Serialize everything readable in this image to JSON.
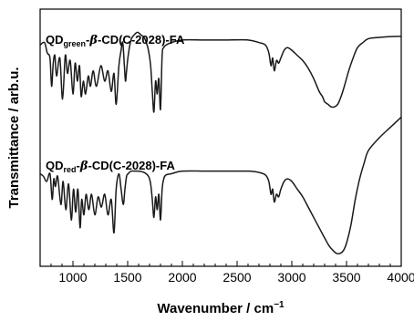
{
  "chart_data": {
    "type": "line",
    "title": "",
    "xlabel": "Wavenumber / cm",
    "xlabel_sup": "−1",
    "ylabel": "Transmittance / arb.u.",
    "xlim": [
      700,
      4000
    ],
    "ylim": [
      0,
      1
    ],
    "x_ticks": [
      1000,
      1500,
      2000,
      2500,
      3000,
      3500,
      4000
    ],
    "x_tick_labels": [
      "1000",
      "1500",
      "2000",
      "2500",
      "3000",
      "3500",
      "4000"
    ],
    "x_minor_ticks": [
      800,
      900,
      1100,
      1200,
      1300,
      1400,
      1600,
      1700,
      1800,
      1900,
      2100,
      2200,
      2300,
      2400,
      2600,
      2700,
      2800,
      2900,
      3100,
      3200,
      3300,
      3400,
      3600,
      3700,
      3800,
      3900
    ],
    "y_ticks_shown": false,
    "grid": false,
    "legend": "none",
    "series": [
      {
        "name": "QDgreen-β-CD(C-2028)-FA",
        "label_parts": [
          {
            "text": "QD",
            "style": "normal"
          },
          {
            "text": "green",
            "style": "sub"
          },
          {
            "text": "-",
            "style": "normal"
          },
          {
            "text": "β",
            "style": "greek"
          },
          {
            "text": "-CD(C-2028)-FA",
            "style": "normal"
          }
        ],
        "color": "#1a1a1a",
        "x": [
          700,
          740,
          765,
          790,
          805,
          820,
          835,
          850,
          880,
          905,
          930,
          950,
          975,
          1000,
          1020,
          1040,
          1060,
          1075,
          1095,
          1115,
          1140,
          1160,
          1185,
          1215,
          1255,
          1290,
          1320,
          1350,
          1375,
          1395,
          1420,
          1440,
          1455,
          1470,
          1480,
          1490,
          1505,
          1530,
          1560,
          1590,
          1620,
          1650,
          1670,
          1690,
          1710,
          1725,
          1740,
          1755,
          1770,
          1785,
          1800,
          1815,
          1830,
          1850,
          1900,
          2000,
          2200,
          2400,
          2600,
          2700,
          2760,
          2790,
          2810,
          2825,
          2840,
          2860,
          2880,
          2900,
          2930,
          2960,
          3000,
          3050,
          3100,
          3150,
          3200,
          3250,
          3280,
          3300,
          3330,
          3360,
          3390,
          3420,
          3450,
          3480,
          3520,
          3560,
          3600,
          3650,
          3700,
          3800,
          3900,
          4000
        ],
        "y": [
          0.86,
          0.87,
          0.83,
          0.81,
          0.7,
          0.79,
          0.82,
          0.74,
          0.81,
          0.65,
          0.82,
          0.75,
          0.8,
          0.67,
          0.79,
          0.72,
          0.78,
          0.66,
          0.72,
          0.67,
          0.74,
          0.7,
          0.76,
          0.7,
          0.78,
          0.72,
          0.76,
          0.68,
          0.75,
          0.63,
          0.78,
          0.84,
          0.87,
          0.78,
          0.72,
          0.76,
          0.82,
          0.88,
          0.9,
          0.91,
          0.9,
          0.89,
          0.87,
          0.84,
          0.78,
          0.68,
          0.6,
          0.72,
          0.67,
          0.73,
          0.61,
          0.82,
          0.85,
          0.86,
          0.87,
          0.88,
          0.88,
          0.88,
          0.88,
          0.87,
          0.86,
          0.83,
          0.78,
          0.81,
          0.76,
          0.8,
          0.79,
          0.81,
          0.84,
          0.85,
          0.84,
          0.82,
          0.8,
          0.77,
          0.73,
          0.68,
          0.66,
          0.64,
          0.63,
          0.62,
          0.62,
          0.63,
          0.66,
          0.7,
          0.76,
          0.81,
          0.85,
          0.87,
          0.885,
          0.89,
          0.893,
          0.894
        ]
      },
      {
        "name": "QDred-β-CD(C-2028)-FA",
        "label_parts": [
          {
            "text": "QD",
            "style": "normal"
          },
          {
            "text": "red",
            "style": "sub"
          },
          {
            "text": "-",
            "style": "normal"
          },
          {
            "text": "β",
            "style": "greek"
          },
          {
            "text": "-CD(C-2028)-FA",
            "style": "normal"
          }
        ],
        "color": "#1a1a1a",
        "x": [
          700,
          730,
          760,
          790,
          810,
          825,
          840,
          860,
          890,
          910,
          935,
          960,
          985,
          1005,
          1025,
          1045,
          1065,
          1080,
          1100,
          1120,
          1145,
          1170,
          1200,
          1230,
          1260,
          1290,
          1320,
          1350,
          1375,
          1395,
          1420,
          1440,
          1460,
          1475,
          1490,
          1505,
          1530,
          1560,
          1600,
          1650,
          1690,
          1710,
          1725,
          1740,
          1755,
          1770,
          1785,
          1800,
          1815,
          1830,
          1850,
          1900,
          2000,
          2200,
          2400,
          2600,
          2700,
          2760,
          2790,
          2810,
          2825,
          2840,
          2860,
          2880,
          2900,
          2930,
          2960,
          3000,
          3050,
          3100,
          3150,
          3200,
          3250,
          3300,
          3340,
          3380,
          3410,
          3440,
          3470,
          3500,
          3540,
          3580,
          3620,
          3660,
          3700,
          3800,
          3900,
          4000
        ],
        "y": [
          0.36,
          0.35,
          0.33,
          0.36,
          0.26,
          0.34,
          0.31,
          0.35,
          0.24,
          0.33,
          0.22,
          0.32,
          0.18,
          0.3,
          0.21,
          0.3,
          0.15,
          0.26,
          0.2,
          0.28,
          0.22,
          0.28,
          0.2,
          0.27,
          0.23,
          0.28,
          0.2,
          0.26,
          0.13,
          0.3,
          0.36,
          0.3,
          0.24,
          0.3,
          0.35,
          0.36,
          0.37,
          0.37,
          0.37,
          0.365,
          0.35,
          0.32,
          0.26,
          0.19,
          0.27,
          0.22,
          0.28,
          0.18,
          0.3,
          0.34,
          0.355,
          0.36,
          0.37,
          0.37,
          0.37,
          0.37,
          0.365,
          0.355,
          0.33,
          0.28,
          0.3,
          0.25,
          0.28,
          0.27,
          0.3,
          0.33,
          0.34,
          0.33,
          0.3,
          0.27,
          0.23,
          0.19,
          0.15,
          0.11,
          0.08,
          0.06,
          0.05,
          0.05,
          0.06,
          0.09,
          0.16,
          0.26,
          0.34,
          0.4,
          0.45,
          0.5,
          0.54,
          0.58
        ]
      }
    ]
  }
}
